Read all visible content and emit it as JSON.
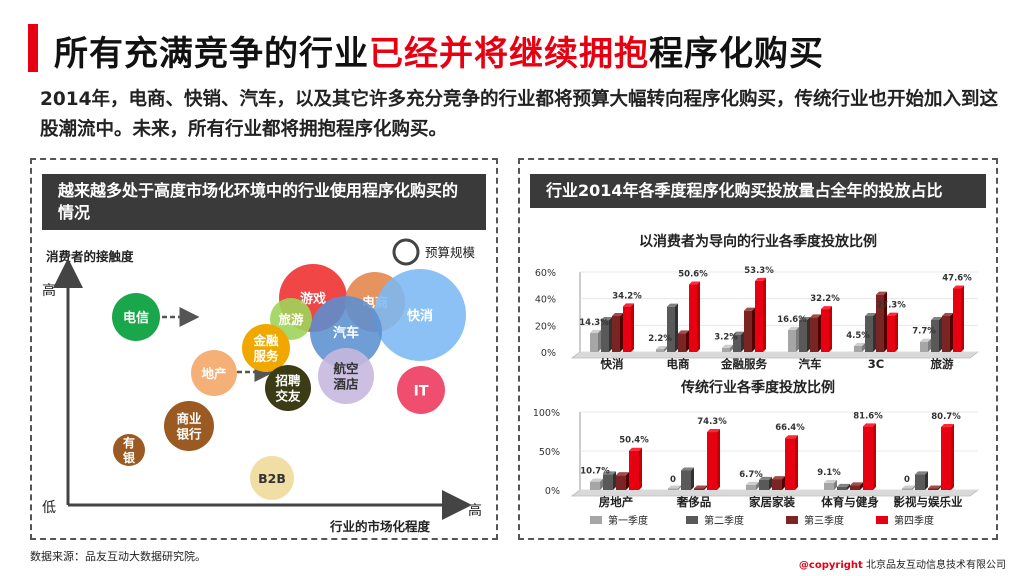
{
  "title": {
    "part1": "所有充满竞争的行业",
    "highlight": "已经并将继续拥抱",
    "part2": "程序化购买"
  },
  "intro": "2014年，电商、快销、汽车，以及其它许多充分竞争的行业都将预算大幅转向程序化购买，传统行业也开始加入到这股潮流中。未来，所有行业都将拥抱程序化购买。",
  "left_panel": {
    "header": "越来越多处于高度市场化环境中的行业使用程序化购买的情况",
    "y_axis_label": "消费者的接触度",
    "x_axis_label": "行业的市场化程度",
    "y_high": "高",
    "y_low": "低",
    "x_high": "高",
    "legend": "预算规模",
    "bubbles": [
      {
        "label": "电信",
        "color": "#1aa64a"
      },
      {
        "label": "游戏",
        "color": "#f03c3c"
      },
      {
        "label": "电商",
        "color": "#e58a52"
      },
      {
        "label": "快消",
        "color": "#7bb8f2"
      },
      {
        "label": "旅游",
        "color": "#9fd45a"
      },
      {
        "label": "汽车",
        "color": "#5b8fd0"
      },
      {
        "label": "金融服务",
        "color": "#f0a800"
      },
      {
        "label": "地产",
        "color": "#f5b078"
      },
      {
        "label": "招聘交友",
        "color": "#3b3b16"
      },
      {
        "label": "航空酒店",
        "color": "#c7b8de"
      },
      {
        "label": "IT",
        "color": "#f04e6e"
      },
      {
        "label": "商业银行",
        "color": "#9a5a22"
      },
      {
        "label": "有银",
        "color": "#9a5a22"
      },
      {
        "label": "B2B",
        "color": "#f0dca0"
      }
    ]
  },
  "right_panel": {
    "header": "行业2014年各季度程序化购买投放量占全年的投放占比"
  },
  "chart_data": [
    {
      "type": "bar",
      "title": "以消费者为导向的行业各季度投放比例",
      "categories": [
        "快消",
        "电商",
        "金融服务",
        "汽车",
        "3C",
        "旅游"
      ],
      "ylim": [
        0,
        60
      ],
      "yticks": [
        "0%",
        "20%",
        "40%",
        "60%"
      ],
      "series": [
        {
          "name": "第一季度",
          "values": [
            14.3,
            2.2,
            3.2,
            16.6,
            4.5,
            7.7
          ]
        },
        {
          "name": "第二季度",
          "values": [
            24,
            34,
            13,
            24,
            27,
            24
          ]
        },
        {
          "name": "第三季度",
          "values": [
            27,
            14,
            31,
            26,
            43,
            27
          ]
        },
        {
          "name": "第四季度",
          "values": [
            34.2,
            50.6,
            53.3,
            32.2,
            27.3,
            47.6
          ]
        }
      ],
      "labels": [
        {
          "category": 0,
          "series": 0,
          "text": "14.3%"
        },
        {
          "category": 0,
          "series": 3,
          "text": "34.2%"
        },
        {
          "category": 1,
          "series": 0,
          "text": "2.2%"
        },
        {
          "category": 1,
          "series": 3,
          "text": "50.6%"
        },
        {
          "category": 2,
          "series": 0,
          "text": "3.2%"
        },
        {
          "category": 2,
          "series": 3,
          "text": "53.3%"
        },
        {
          "category": 3,
          "series": 0,
          "text": "16.6%"
        },
        {
          "category": 3,
          "series": 3,
          "text": "32.2%"
        },
        {
          "category": 4,
          "series": 0,
          "text": "4.5%"
        },
        {
          "category": 4,
          "series": 3,
          "text": "27.3%"
        },
        {
          "category": 5,
          "series": 0,
          "text": "7.7%"
        },
        {
          "category": 5,
          "series": 3,
          "text": "47.6%"
        }
      ]
    },
    {
      "type": "bar",
      "title": "传统行业各季度投放比例",
      "categories": [
        "房地产",
        "奢侈品",
        "家居家装",
        "体育与健身",
        "影视与娱乐业"
      ],
      "ylim": [
        0,
        100
      ],
      "yticks": [
        "0%",
        "50%",
        "100%"
      ],
      "series": [
        {
          "name": "第一季度",
          "values": [
            10.7,
            0,
            6.7,
            9.1,
            0
          ]
        },
        {
          "name": "第二季度",
          "values": [
            20,
            25,
            13,
            4,
            20
          ]
        },
        {
          "name": "第三季度",
          "values": [
            19,
            1,
            14,
            6,
            0
          ]
        },
        {
          "name": "第四季度",
          "values": [
            50.4,
            74.3,
            66.4,
            81.6,
            80.7
          ]
        }
      ],
      "labels": [
        {
          "category": 0,
          "series": 0,
          "text": "10.7%"
        },
        {
          "category": 0,
          "series": 3,
          "text": "50.4%"
        },
        {
          "category": 1,
          "series": 0,
          "text": "0"
        },
        {
          "category": 1,
          "series": 3,
          "text": "74.3%"
        },
        {
          "category": 2,
          "series": 0,
          "text": "6.7%"
        },
        {
          "category": 2,
          "series": 3,
          "text": "66.4%"
        },
        {
          "category": 3,
          "series": 0,
          "text": "9.1%"
        },
        {
          "category": 3,
          "series": 3,
          "text": "81.6%"
        },
        {
          "category": 4,
          "series": 0,
          "text": "0"
        },
        {
          "category": 4,
          "series": 3,
          "text": "80.7%"
        }
      ],
      "legend": [
        "第一季度",
        "第二季度",
        "第三季度",
        "第四季度"
      ]
    }
  ],
  "colors": {
    "q1": "#a6a6a6",
    "q2": "#595959",
    "q3": "#7a2424",
    "q4": "#e60012",
    "accent": "#e60012"
  },
  "footer": {
    "source": "数据来源：品友互动大数据研究院。",
    "copyright_mark": "@copyright",
    "company": "北京品友互动信息技术有限公司"
  }
}
